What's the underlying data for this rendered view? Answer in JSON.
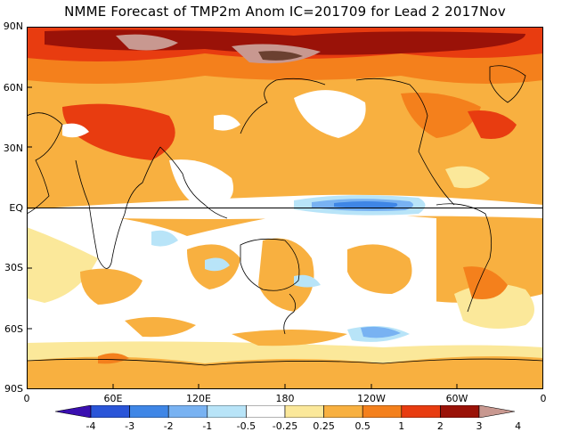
{
  "map": {
    "title": "NMME Forecast of TMP2m Anom IC=201709 for Lead 2 2017Nov",
    "lat_labels": [
      "90N",
      "60N",
      "30N",
      "EQ",
      "30S",
      "60S",
      "90S"
    ],
    "lon_labels": [
      "0",
      "60E",
      "120E",
      "180",
      "120W",
      "60W",
      "0"
    ]
  },
  "colorbar": {
    "labels": [
      "-4",
      "-3",
      "-2",
      "-1",
      "-0.5",
      "-0.25",
      "0.25",
      "0.5",
      "1",
      "2",
      "3",
      "4"
    ],
    "colors": [
      "#3a0fb0",
      "#2a55d8",
      "#3f86e6",
      "#78b2f2",
      "#b8e4f8",
      "#ffffff",
      "#fbe89a",
      "#f8b040",
      "#f4801c",
      "#e83c10",
      "#9a1208",
      "#c89890"
    ]
  }
}
